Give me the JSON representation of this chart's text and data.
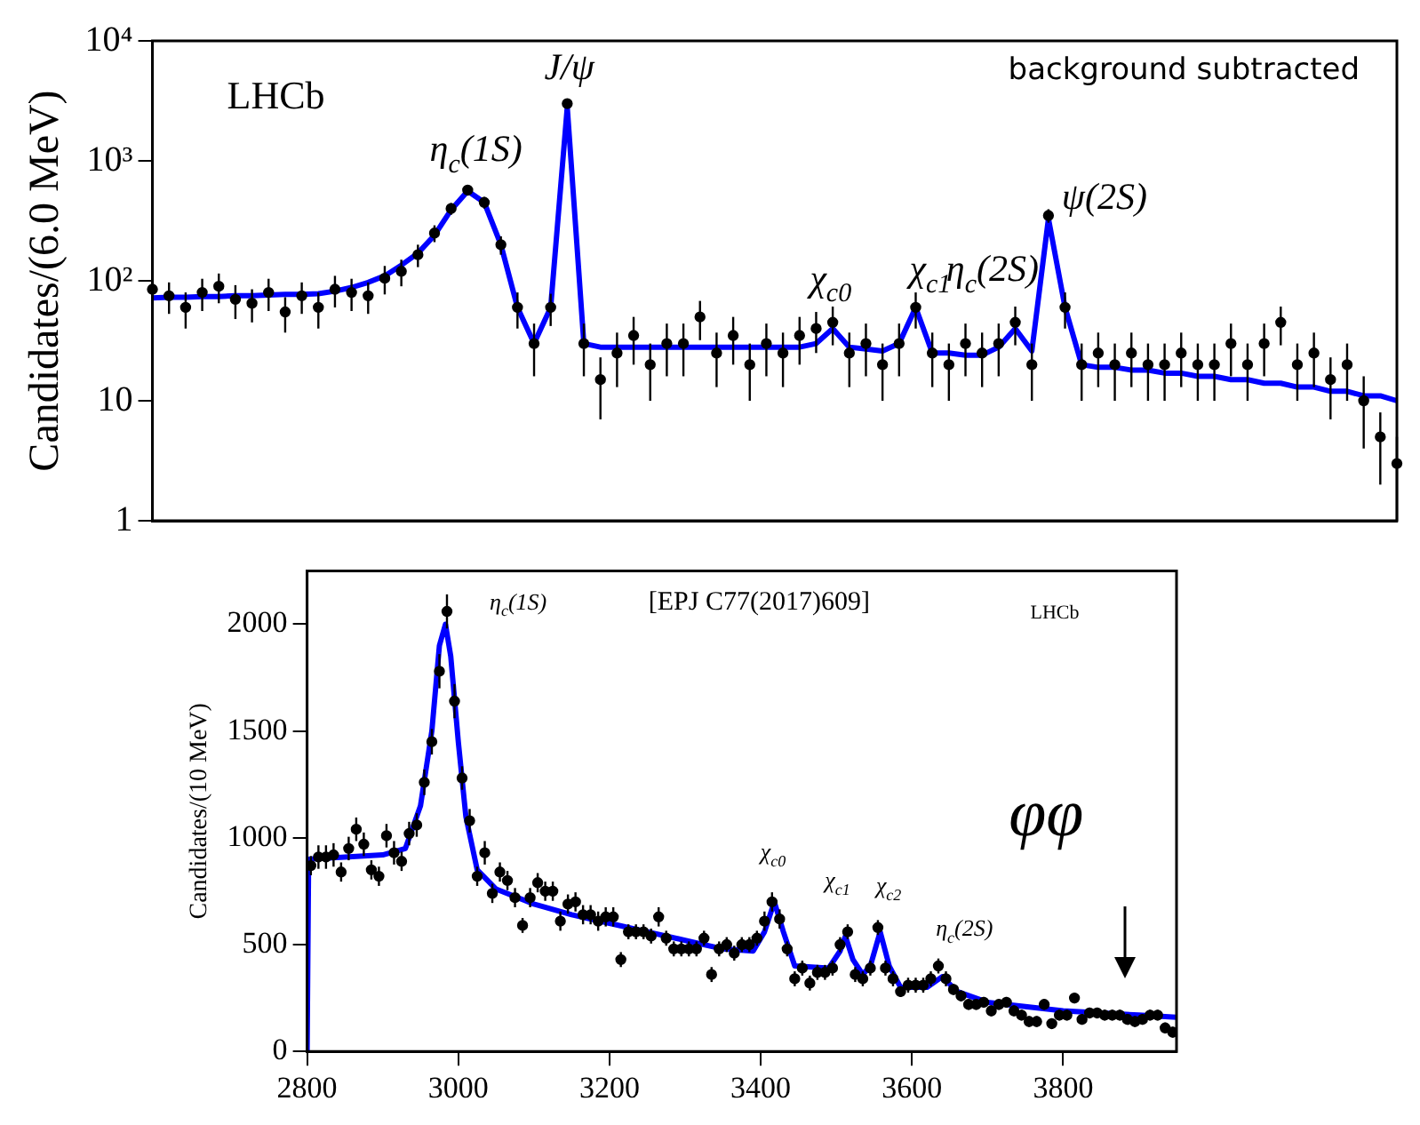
{
  "chart_data": [
    {
      "type": "scatter",
      "ylabel": "Candidates/(6.0 MeV)",
      "log": "y",
      "ylim": [
        1,
        10000
      ],
      "yticks": [
        1,
        10,
        {
          "value": 100,
          "label": "10²"
        },
        {
          "value": 1000,
          "label": "10³"
        },
        {
          "value": 10000,
          "label": "10⁴"
        }
      ],
      "tick_labels": "y",
      "grid": false,
      "annotations": [
        "LHCb",
        "background subtracted",
        "η$_{c}$(1S)",
        "J/ψ",
        "χ$_{c0}$",
        "χ$_{c1}$",
        "η$_{c}$(2S)",
        "ψ(2S)"
      ],
      "categories": [
        null,
        null,
        null,
        null,
        null,
        null,
        null,
        null,
        null,
        null,
        null,
        null,
        null,
        null,
        null,
        null,
        null,
        null,
        null,
        null,
        null,
        null,
        null,
        null,
        null,
        null,
        null,
        null,
        null,
        null,
        null,
        null,
        null,
        null,
        null,
        null,
        null,
        null,
        null,
        null,
        null,
        null,
        null,
        null,
        null,
        null,
        null,
        null,
        null,
        null,
        null,
        null,
        null,
        null,
        null,
        null,
        null,
        null,
        null,
        null,
        null,
        null,
        null,
        null,
        null,
        null,
        null,
        null,
        null,
        null,
        null,
        null,
        null,
        null,
        null,
        null
      ],
      "series": [
        {
          "type": "scatter",
          "color": "#000000",
          "marker": "circle",
          "values": [
            85,
            75,
            60,
            80,
            90,
            70,
            65,
            80,
            55,
            75,
            60,
            85,
            80,
            75,
            105,
            120,
            165,
            250,
            400,
            570,
            450,
            200,
            60,
            30,
            60,
            3000,
            30,
            15,
            25,
            35,
            20,
            30,
            30,
            50,
            25,
            35,
            20,
            30,
            25,
            35,
            40,
            45,
            25,
            30,
            20,
            30,
            60,
            25,
            20,
            30,
            25,
            30,
            45,
            20,
            350,
            60,
            20,
            25,
            20,
            25,
            20,
            20,
            25,
            20,
            20,
            30,
            20,
            30,
            45,
            20,
            25,
            15,
            20,
            10,
            5,
            3
          ],
          "errors": [
            25,
            22,
            20,
            24,
            25,
            22,
            20,
            24,
            18,
            22,
            20,
            25,
            24,
            22,
            28,
            30,
            35,
            40,
            45,
            55,
            50,
            35,
            20,
            14,
            18,
            140,
            14,
            8,
            12,
            15,
            10,
            14,
            14,
            18,
            12,
            15,
            10,
            14,
            12,
            15,
            15,
            16,
            12,
            14,
            10,
            14,
            20,
            12,
            10,
            14,
            12,
            14,
            16,
            10,
            45,
            20,
            10,
            12,
            10,
            12,
            10,
            10,
            12,
            10,
            10,
            14,
            10,
            14,
            16,
            10,
            12,
            8,
            10,
            6,
            3,
            2
          ]
        },
        {
          "type": "line",
          "color": "#0000ff",
          "marker": "none",
          "values": [
            72,
            73,
            73,
            74,
            74,
            75,
            75,
            76,
            77,
            77,
            78,
            82,
            88,
            97,
            110,
            135,
            170,
            240,
            390,
            560,
            450,
            200,
            60,
            30,
            60,
            2800,
            30,
            28,
            28,
            28,
            28,
            28,
            28,
            28,
            28,
            28,
            28,
            28,
            28,
            28,
            30,
            40,
            28,
            27,
            26,
            30,
            60,
            25,
            25,
            24,
            24,
            28,
            40,
            26,
            330,
            60,
            20,
            19,
            19,
            18,
            18,
            17,
            17,
            16,
            16,
            15,
            15,
            14,
            14,
            13,
            13,
            12,
            12,
            11,
            11,
            10
          ]
        }
      ]
    },
    {
      "type": "scatter",
      "ylabel": "Candidates/(10 MeV)",
      "xlim": [
        2800,
        3950
      ],
      "xticks": [
        2800,
        3000,
        3200,
        3400,
        3600,
        3800
      ],
      "ylim": [
        0,
        2250
      ],
      "yticks": [
        0,
        500,
        1000,
        1500,
        2000
      ],
      "grid": false,
      "annotations": [
        "[EPJ C77(2017)609]",
        "LHCb",
        "φφ",
        "η$_{c}$(1S)",
        "χ$_{c0}$",
        "χ$_{c1}$",
        "χ$_{c2}$",
        "η$_{c}$(2S)"
      ],
      "series": [
        {
          "type": "scatter",
          "color": "#000000",
          "marker": "circle",
          "x": [
            2805,
            2815,
            2825,
            2835,
            2845,
            2855,
            2865,
            2875,
            2885,
            2895,
            2905,
            2915,
            2925,
            2935,
            2945,
            2955,
            2965,
            2975,
            2985,
            2995,
            3005,
            3015,
            3025,
            3035,
            3045,
            3055,
            3065,
            3075,
            3085,
            3095,
            3105,
            3115,
            3125,
            3135,
            3145,
            3155,
            3165,
            3175,
            3185,
            3195,
            3205,
            3215,
            3225,
            3235,
            3245,
            3255,
            3265,
            3275,
            3285,
            3295,
            3305,
            3315,
            3325,
            3335,
            3345,
            3355,
            3365,
            3375,
            3385,
            3395,
            3405,
            3415,
            3425,
            3435,
            3445,
            3455,
            3465,
            3475,
            3485,
            3495,
            3505,
            3515,
            3525,
            3535,
            3545,
            3555,
            3565,
            3575,
            3585,
            3595,
            3605,
            3615,
            3625,
            3635,
            3645,
            3655,
            3665,
            3675,
            3685,
            3695,
            3705,
            3715,
            3725,
            3735,
            3745,
            3755,
            3765,
            3775,
            3785,
            3795,
            3805,
            3815,
            3825,
            3835,
            3845,
            3855,
            3865,
            3875,
            3885,
            3895,
            3905,
            3915,
            3925,
            3935,
            3945
          ],
          "values": [
            870,
            910,
            910,
            920,
            840,
            950,
            1040,
            970,
            850,
            820,
            1010,
            930,
            890,
            1020,
            1060,
            1260,
            1450,
            1780,
            2060,
            1640,
            1280,
            1080,
            820,
            930,
            740,
            840,
            800,
            720,
            590,
            720,
            790,
            750,
            750,
            610,
            690,
            700,
            640,
            640,
            610,
            630,
            630,
            430,
            560,
            560,
            560,
            540,
            630,
            530,
            480,
            480,
            480,
            480,
            530,
            360,
            480,
            500,
            460,
            500,
            500,
            530,
            610,
            700,
            620,
            480,
            340,
            390,
            320,
            370,
            370,
            390,
            500,
            560,
            360,
            340,
            390,
            580,
            390,
            340,
            280,
            310,
            310,
            310,
            340,
            400,
            340,
            290,
            260,
            220,
            220,
            230,
            190,
            220,
            230,
            190,
            170,
            140,
            140,
            220,
            130,
            170,
            170,
            250,
            150,
            180,
            180,
            170,
            170,
            170,
            150,
            140,
            150,
            170,
            170,
            110,
            90
          ],
          "errors": [
            45,
            55,
            55,
            55,
            45,
            55,
            55,
            55,
            45,
            45,
            55,
            55,
            45,
            55,
            55,
            60,
            60,
            80,
            80,
            80,
            55,
            55,
            45,
            55,
            45,
            45,
            45,
            45,
            35,
            45,
            45,
            45,
            45,
            45,
            45,
            45,
            45,
            45,
            45,
            45,
            45,
            35,
            35,
            35,
            35,
            35,
            45,
            35,
            35,
            35,
            35,
            35,
            35,
            35,
            35,
            35,
            35,
            35,
            35,
            35,
            45,
            45,
            45,
            35,
            35,
            35,
            35,
            35,
            35,
            35,
            35,
            35,
            35,
            35,
            35,
            35,
            35,
            35,
            25,
            35,
            35,
            35,
            35,
            35,
            35,
            25,
            25,
            25,
            25,
            25,
            25,
            25,
            25,
            25,
            25,
            25,
            25,
            25,
            25,
            25,
            25,
            25,
            25,
            25,
            25,
            25,
            25,
            25,
            25,
            25,
            25,
            25,
            25,
            25,
            25
          ]
        },
        {
          "type": "line",
          "color": "#0000ff",
          "marker": "none",
          "x": [
            2800,
            2802,
            2850,
            2900,
            2930,
            2950,
            2965,
            2975,
            2983,
            2990,
            3000,
            3010,
            3025,
            3050,
            3100,
            3150,
            3200,
            3250,
            3300,
            3350,
            3390,
            3405,
            3418,
            3430,
            3445,
            3490,
            3505,
            3512,
            3522,
            3535,
            3545,
            3558,
            3570,
            3585,
            3620,
            3640,
            3660,
            3700,
            3800,
            3900,
            3950
          ],
          "values": [
            0,
            900,
            910,
            920,
            950,
            1150,
            1500,
            1900,
            2000,
            1850,
            1450,
            1100,
            850,
            760,
            690,
            640,
            600,
            560,
            520,
            480,
            470,
            560,
            700,
            560,
            400,
            390,
            470,
            540,
            430,
            360,
            400,
            560,
            400,
            300,
            300,
            350,
            280,
            230,
            190,
            170,
            160
          ]
        }
      ]
    }
  ]
}
